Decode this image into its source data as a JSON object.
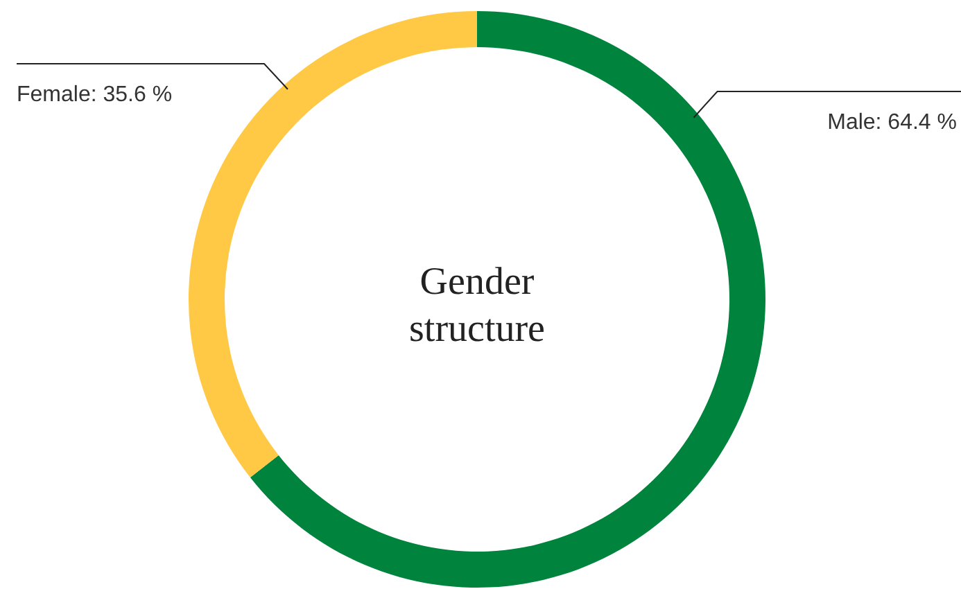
{
  "chart_data": {
    "type": "donut",
    "title": "Gender structure",
    "categories": [
      "Male",
      "Female"
    ],
    "values": [
      64.4,
      35.6
    ],
    "value_labels": [
      "64.4 %",
      "35.6 %"
    ],
    "colors": [
      "#00843d",
      "#ffc845"
    ]
  }
}
